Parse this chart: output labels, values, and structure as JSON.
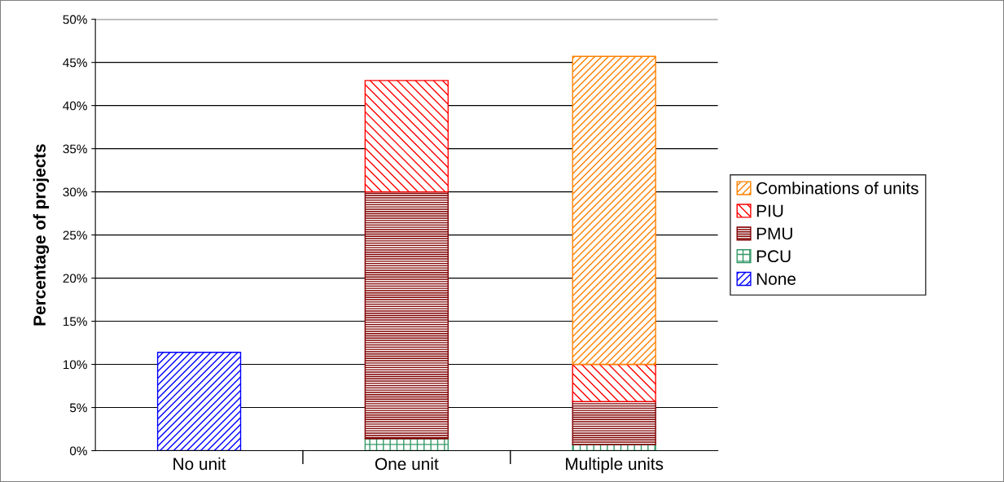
{
  "chart_data": {
    "type": "bar",
    "stacked": true,
    "ylabel": "Percentage of projects",
    "categories": [
      "No unit",
      "One unit",
      "Multiple units"
    ],
    "series": [
      {
        "name": "None",
        "color": "#0000ff",
        "values": [
          11.4,
          null,
          null
        ]
      },
      {
        "name": "PCU",
        "color": "#339966",
        "values": [
          null,
          1.4,
          0.7
        ]
      },
      {
        "name": "PMU",
        "color": "#800000",
        "values": [
          null,
          28.6,
          5.0
        ]
      },
      {
        "name": "PIU",
        "color": "#ff0000",
        "values": [
          null,
          12.9,
          4.3
        ]
      },
      {
        "name": "Combinations of units",
        "color": "#ff8000",
        "values": [
          null,
          null,
          35.7
        ]
      }
    ],
    "ylim": [
      0,
      50
    ],
    "yticks": [
      {
        "value": 0,
        "label": "0%"
      },
      {
        "value": 5,
        "label": "5%"
      },
      {
        "value": 10,
        "label": "10%"
      },
      {
        "value": 15,
        "label": "15%"
      },
      {
        "value": 20,
        "label": "20%"
      },
      {
        "value": 25,
        "label": "25%"
      },
      {
        "value": 30,
        "label": "30%"
      },
      {
        "value": 35,
        "label": "35%"
      },
      {
        "value": 40,
        "label": "40%"
      },
      {
        "value": 45,
        "label": "45%"
      },
      {
        "value": 50,
        "label": "50%"
      }
    ],
    "grid": "y",
    "legend": "right"
  }
}
